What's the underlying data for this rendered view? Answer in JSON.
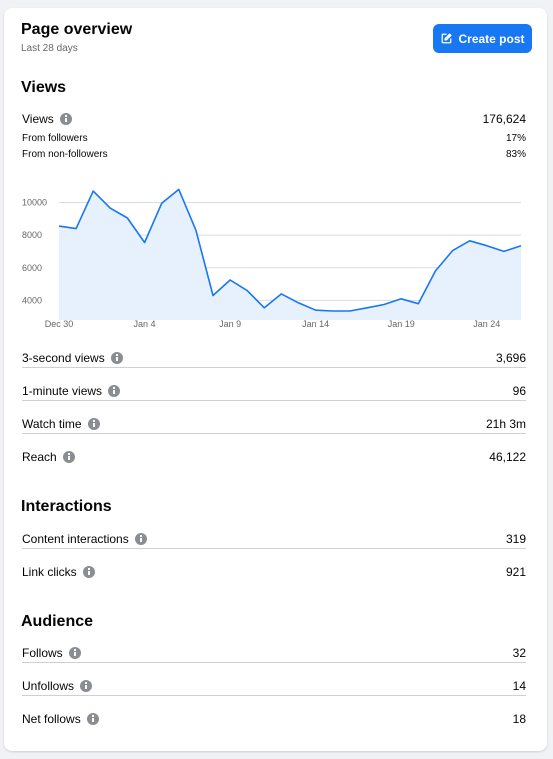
{
  "header": {
    "title": "Page overview",
    "subtitle": "Last 28 days",
    "create_post_label": "Create post"
  },
  "views_section": {
    "title": "Views",
    "views_label": "Views",
    "views_value": "176,624",
    "from_followers_label": "From followers",
    "from_followers_value": "17%",
    "from_non_followers_label": "From non-followers",
    "from_non_followers_value": "83%"
  },
  "chart_data": {
    "type": "area",
    "x": [
      "Dec 30",
      "Dec 31",
      "Jan 1",
      "Jan 2",
      "Jan 3",
      "Jan 4",
      "Jan 5",
      "Jan 6",
      "Jan 7",
      "Jan 8",
      "Jan 9",
      "Jan 10",
      "Jan 11",
      "Jan 12",
      "Jan 13",
      "Jan 14",
      "Jan 15",
      "Jan 16",
      "Jan 17",
      "Jan 18",
      "Jan 19",
      "Jan 20",
      "Jan 21",
      "Jan 22",
      "Jan 23",
      "Jan 24",
      "Jan 25",
      "Jan 26"
    ],
    "values": [
      8550,
      8400,
      10700,
      9650,
      9050,
      7550,
      9950,
      10800,
      8300,
      4300,
      5250,
      4600,
      3550,
      4400,
      3850,
      3400,
      3350,
      3350,
      3550,
      3750,
      4100,
      3800,
      5800,
      7050,
      7650,
      7350,
      7000,
      7350
    ],
    "xtick_labels": [
      "Dec 30",
      "Jan 4",
      "Jan 9",
      "Jan 14",
      "Jan 19",
      "Jan 24"
    ],
    "ytick_labels": [
      "4000",
      "6000",
      "8000",
      "10000"
    ],
    "yticks": [
      4000,
      6000,
      8000,
      10000
    ],
    "ylim": [
      2800,
      11500
    ],
    "grid": true,
    "color": "#1877f2",
    "fill": "#e7f0fd"
  },
  "views_metrics": [
    {
      "label": "3-second views",
      "value": "3,696"
    },
    {
      "label": "1-minute views",
      "value": "96"
    },
    {
      "label": "Watch time",
      "value": "21h 3m"
    },
    {
      "label": "Reach",
      "value": "46,122"
    }
  ],
  "interactions_section": {
    "title": "Interactions",
    "metrics": [
      {
        "label": "Content interactions",
        "value": "319"
      },
      {
        "label": "Link clicks",
        "value": "921"
      }
    ]
  },
  "audience_section": {
    "title": "Audience",
    "metrics": [
      {
        "label": "Follows",
        "value": "32"
      },
      {
        "label": "Unfollows",
        "value": "14"
      },
      {
        "label": "Net follows",
        "value": "18"
      }
    ]
  },
  "icons": {
    "info": "info-icon",
    "edit": "edit-icon"
  },
  "colors": {
    "accent": "#1877f2",
    "divider": "#ced0d4",
    "secondary_text": "#65676b"
  }
}
